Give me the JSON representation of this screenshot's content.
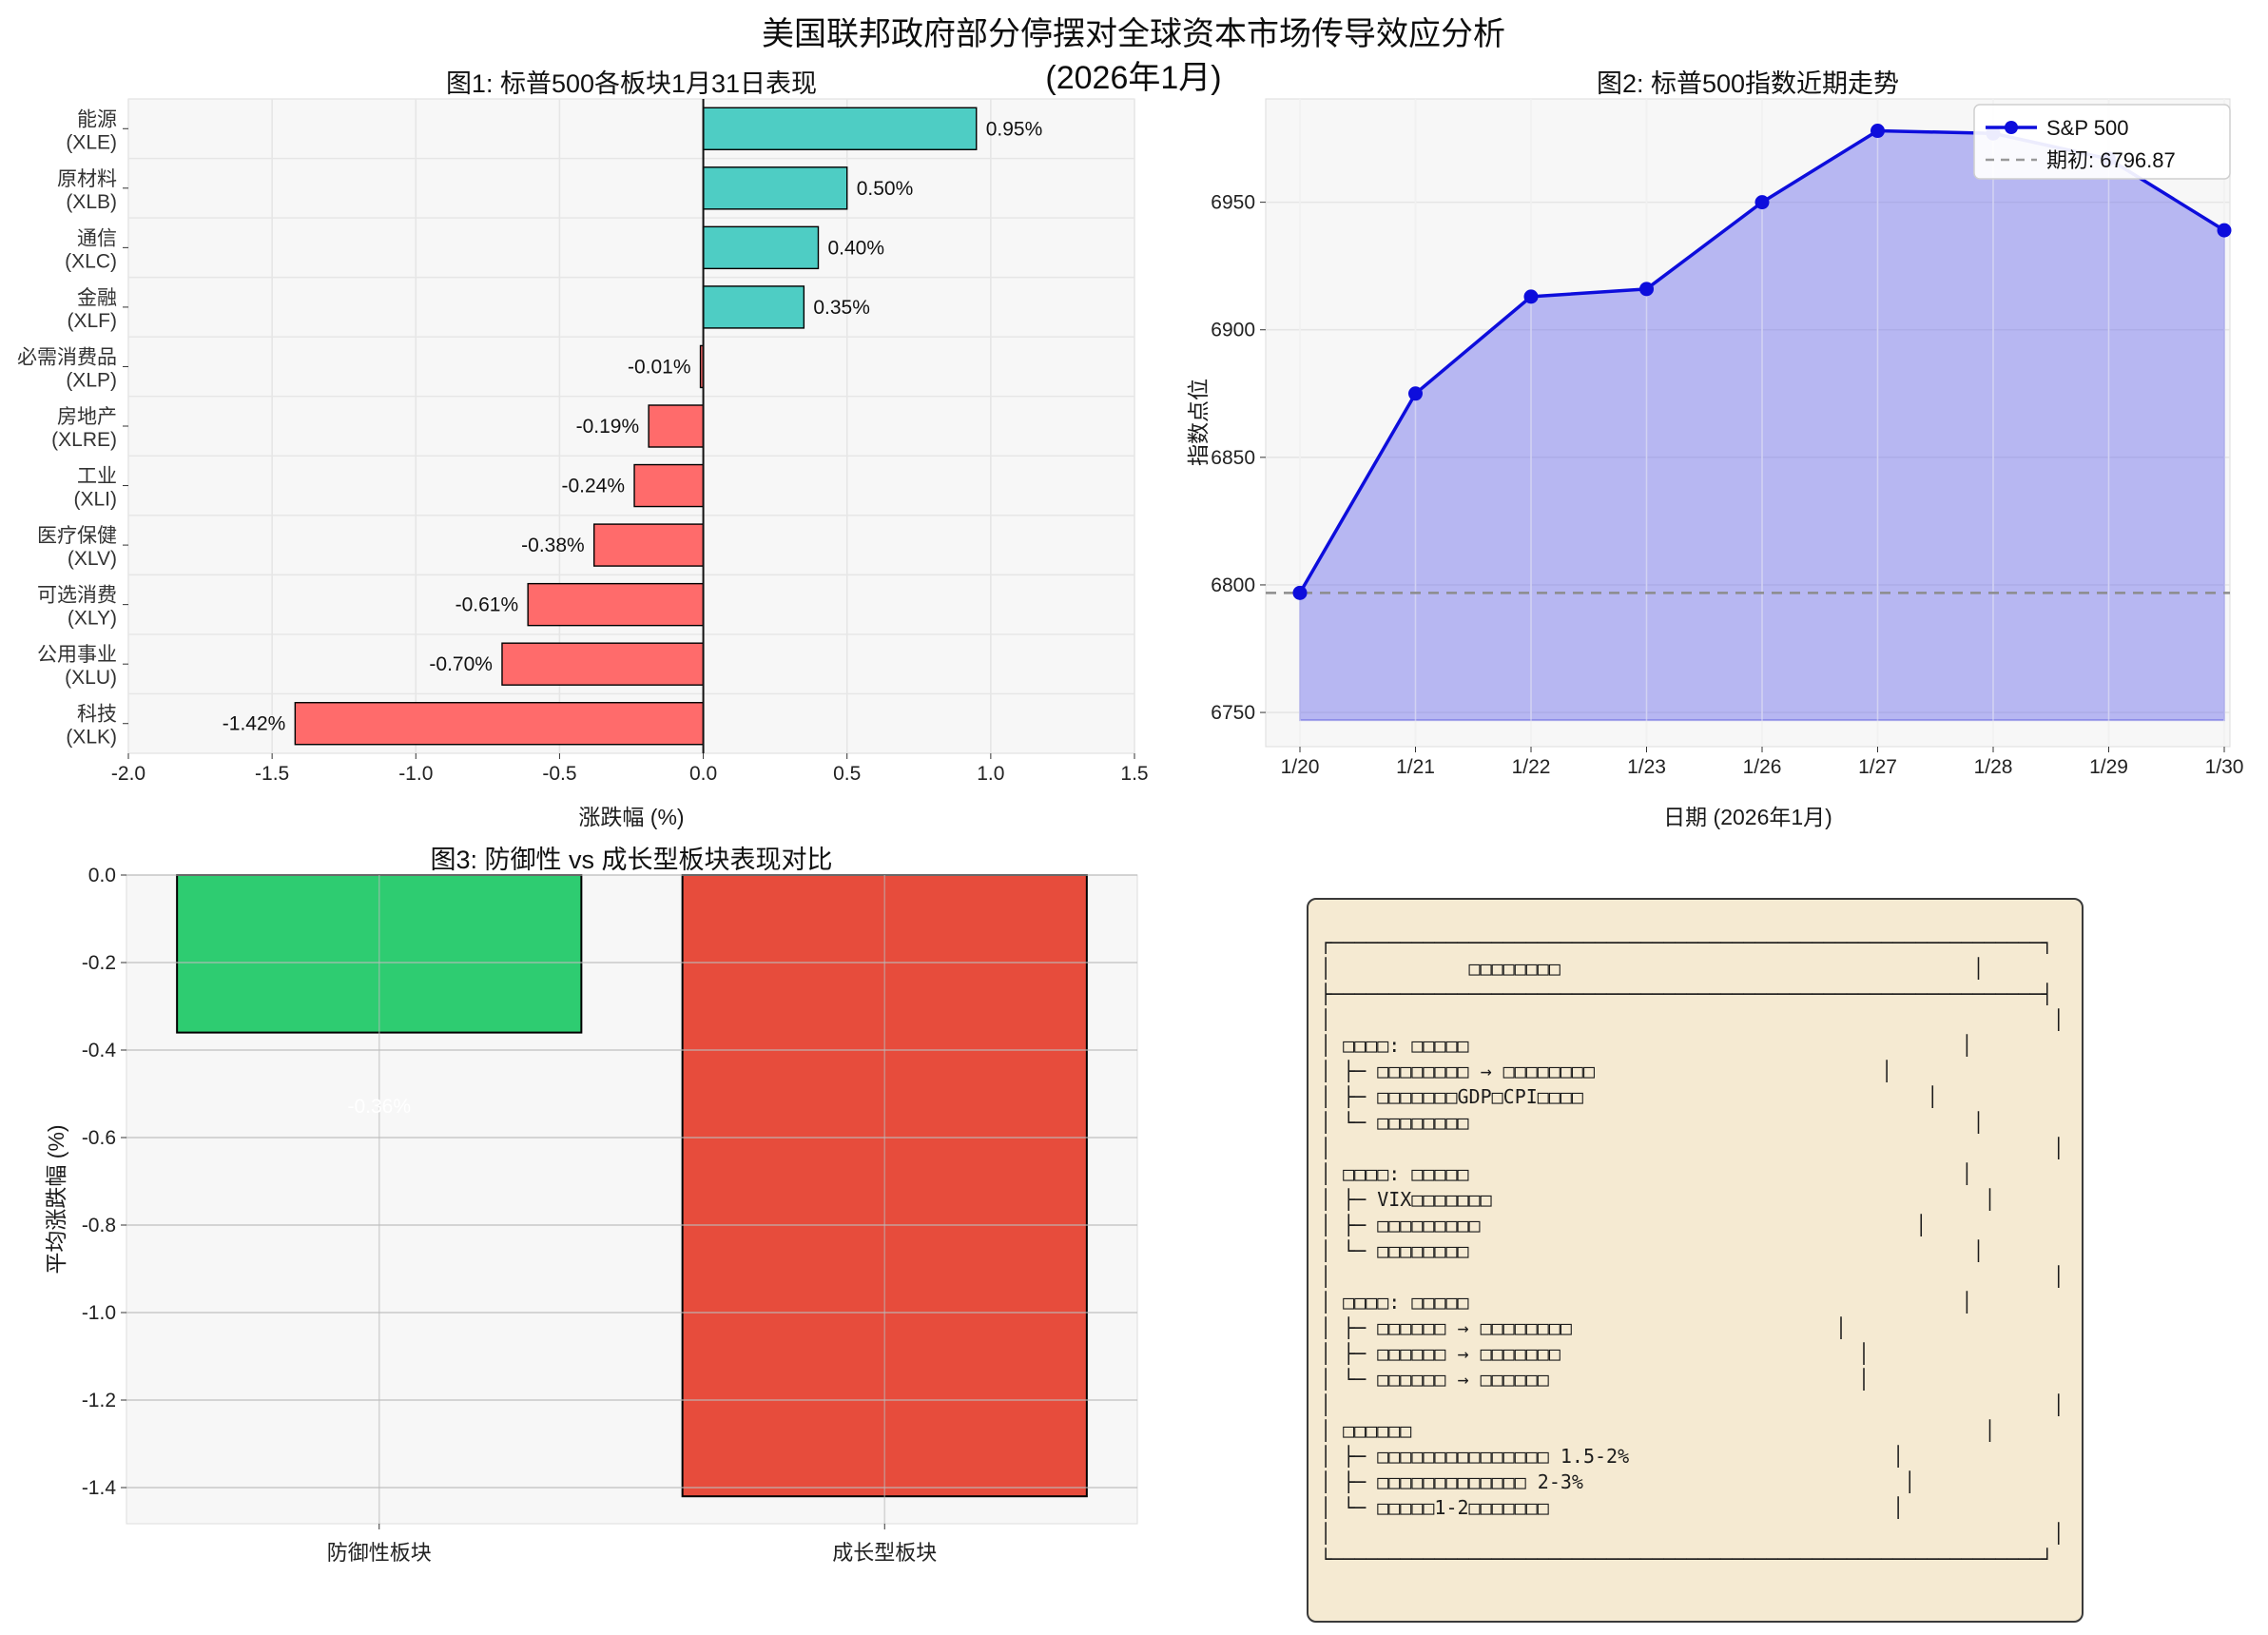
{
  "header": {
    "title": "美国联邦政府部分停摆对全球资本市场传导效应分析",
    "subtitle": "(2026年1月)"
  },
  "colors": {
    "positive": "#4ECDC4",
    "negative": "#FF6B6B",
    "defensive_green": "#2ECC71",
    "growth_red": "#E74C3C",
    "line_blue": "#0D0DDC",
    "area_fill": "rgba(95,95,235,0.42)",
    "baseline_gray": "#8c8c8c",
    "plot_bg": "#F7F7F7",
    "box_bg": "#F5EAD2",
    "box_border": "#3A3A3A"
  },
  "chart_data": [
    {
      "id": "fig1",
      "type": "bar",
      "orientation": "horizontal",
      "title": "图1: 标普500各板块1月31日表现",
      "xlabel": "涨跌幅 (%)",
      "categories": [
        [
          "能源",
          "(XLE)"
        ],
        [
          "原材料",
          "(XLB)"
        ],
        [
          "通信",
          "(XLC)"
        ],
        [
          "金融",
          "(XLF)"
        ],
        [
          "必需消费品",
          "(XLP)"
        ],
        [
          "房地产",
          "(XLRE)"
        ],
        [
          "工业",
          "(XLI)"
        ],
        [
          "医疗保健",
          "(XLV)"
        ],
        [
          "可选消费",
          "(XLY)"
        ],
        [
          "公用事业",
          "(XLU)"
        ],
        [
          "科技",
          "(XLK)"
        ]
      ],
      "values": [
        0.95,
        0.5,
        0.4,
        0.35,
        -0.01,
        -0.19,
        -0.24,
        -0.38,
        -0.61,
        -0.7,
        -1.42
      ],
      "value_labels": [
        "0.95%",
        "0.50%",
        "0.40%",
        "0.35%",
        "-0.01%",
        "-0.19%",
        "-0.24%",
        "-0.38%",
        "-0.61%",
        "-0.70%",
        "-1.42%"
      ],
      "xlim": [
        -2.0,
        1.5
      ],
      "xticks": [
        -2.0,
        -1.5,
        -1.0,
        -0.5,
        0.0,
        0.5,
        1.0,
        1.5
      ],
      "xtick_labels": [
        "-2.0",
        "-1.5",
        "-1.0",
        "-0.5",
        "0.0",
        "0.5",
        "1.0",
        "1.5"
      ]
    },
    {
      "id": "fig2",
      "type": "line",
      "title": "图2: 标普500指数近期走势",
      "xlabel": "日期 (2026年1月)",
      "ylabel": "指数点位",
      "x_labels": [
        "1/20",
        "1/21",
        "1/22",
        "1/23",
        "1/26",
        "1/27",
        "1/28",
        "1/29",
        "1/30"
      ],
      "values": [
        6796.87,
        6875,
        6913,
        6916,
        6950,
        6978,
        6977,
        6967,
        6939
      ],
      "ylim": [
        6737,
        6990
      ],
      "yticks": [
        6750,
        6800,
        6850,
        6900,
        6950
      ],
      "ytick_labels": [
        "6750",
        "6800",
        "6850",
        "6900",
        "6950"
      ],
      "baseline_value": 6796.87,
      "legend": [
        {
          "label": "S&P 500",
          "style": "line"
        },
        {
          "label": "期初: 6796.87",
          "style": "dashed"
        }
      ]
    },
    {
      "id": "fig3",
      "type": "bar",
      "orientation": "vertical",
      "title": "图3: 防御性 vs 成长型板块表现对比",
      "ylabel": "平均涨跌幅 (%)",
      "categories": [
        "防御性板块",
        "成长型板块"
      ],
      "values": [
        -0.36,
        -1.42
      ],
      "bar_value_labels": [
        "-0.36%",
        ""
      ],
      "bar_colors": [
        "#2ECC71",
        "#E74C3C"
      ],
      "ylim": [
        0,
        -1.45
      ],
      "yticks": [
        0,
        -0.2,
        -0.4,
        -0.6,
        -0.8,
        -1.0,
        -1.2,
        -1.4
      ],
      "ytick_labels": [
        "0.0",
        "-0.2",
        "-0.4",
        "-0.6",
        "-0.8",
        "-1.0",
        "-1.2",
        "-1.4"
      ]
    }
  ],
  "info_box": {
    "note": "monospace panel; CJK glyphs rendered as tofu boxes in source image, latin parts legible: GDP, CPI, VIX, 1.5-2%, 2-3%, 1-2",
    "lines": [
      "┌──────────────────────────────────────────────────────────────┐",
      "│            □□□□□□□□                                    │",
      "├──────────────────────────────────────────────────────────────┤",
      "│                                                               │",
      "│ □□□□: □□□□□                                           │",
      "│ ├─ □□□□□□□□ → □□□□□□□□                         │",
      "│ ├─ □□□□□□□GDP□CPI□□□□                              │",
      "│ └─ □□□□□□□□                                            │",
      "│                                                               │",
      "│ □□□□: □□□□□                                           │",
      "│ ├─ VIX□□□□□□□                                           │",
      "│ ├─ □□□□□□□□□                                      │",
      "│ └─ □□□□□□□□                                            │",
      "│                                                               │",
      "│ □□□□: □□□□□                                           │",
      "│ ├─ □□□□□□ → □□□□□□□□                       │",
      "│ ├─ □□□□□□ → □□□□□□□                          │",
      "│ └─ □□□□□□ → □□□□□□                           │",
      "│                                                               │",
      "│ □□□□□□                                                  │",
      "│ ├─ □□□□□□□□□□□□□□□ 1.5-2%                       │",
      "│ ├─ □□□□□□□□□□□□□ 2-3%                            │",
      "│ └─ □□□□□1-2□□□□□□□                              │",
      "│                                                               │",
      "└──────────────────────────────────────────────────────────────┘"
    ]
  }
}
